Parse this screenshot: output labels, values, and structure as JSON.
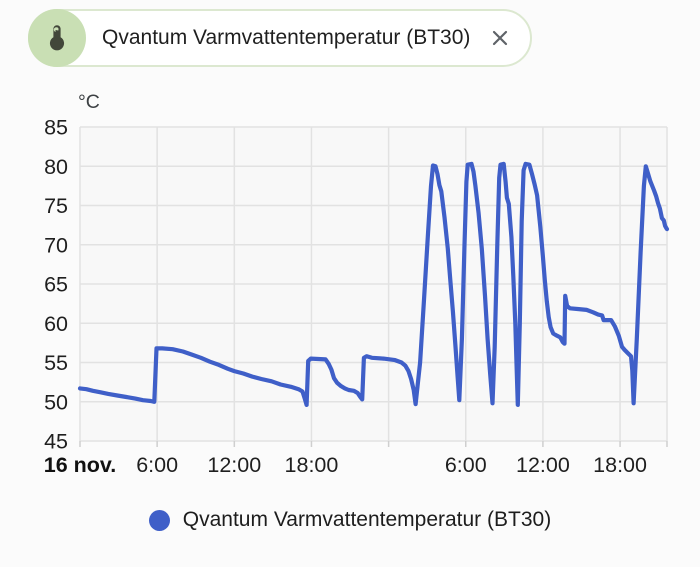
{
  "chip": {
    "label": "Qvantum Varmvattentemperatur (BT30)",
    "icon": "thermometer-icon",
    "close_icon": "close-icon"
  },
  "legend": {
    "label": "Qvantum Varmvattentemperatur (BT30)"
  },
  "colors": {
    "line": "#3f5fc8",
    "legend_marker": "#3f5fc8",
    "grid": "#e2e2e2",
    "tick": "#cfcfcf",
    "axis_text": "#1f1f1f",
    "unit_text": "#3c4043",
    "plot_bg": "#f8f8f8",
    "page_bg": "#fbfbfb",
    "chip_border": "#dce8d0",
    "chip_circle_bg": "#c9dfb4",
    "thermo_icon": "#42473a",
    "close_icon": "#5f6368"
  },
  "chart_data": {
    "type": "line",
    "title": "",
    "unit_label": "°C",
    "legend_position": "bottom",
    "grid": true,
    "x_axis": {
      "range_hours": [
        0,
        45.65
      ],
      "start_label": "16 nov.",
      "tick_labels": [
        {
          "hour": 0,
          "label": "16 nov.",
          "bold": true
        },
        {
          "hour": 6,
          "label": "6:00"
        },
        {
          "hour": 12,
          "label": "12:00"
        },
        {
          "hour": 18,
          "label": "18:00"
        },
        {
          "hour": 24,
          "label": ""
        },
        {
          "hour": 30,
          "label": "6:00"
        },
        {
          "hour": 36,
          "label": "12:00"
        },
        {
          "hour": 42,
          "label": "18:00"
        }
      ]
    },
    "y_axis": {
      "min": 45,
      "max": 85,
      "tick_interval": 5
    },
    "series": [
      {
        "name": "Qvantum Varmvattentemperatur (BT30)",
        "color": "#3f5fc8",
        "points": [
          [
            0.0,
            51.7
          ],
          [
            0.5,
            51.6
          ],
          [
            1.0,
            51.4
          ],
          [
            1.6,
            51.2
          ],
          [
            2.2,
            51.0
          ],
          [
            2.9,
            50.8
          ],
          [
            3.6,
            50.6
          ],
          [
            4.3,
            50.4
          ],
          [
            4.9,
            50.2
          ],
          [
            5.5,
            50.1
          ],
          [
            5.78,
            50.0
          ],
          [
            5.95,
            56.8
          ],
          [
            6.4,
            56.8
          ],
          [
            7.2,
            56.7
          ],
          [
            8.0,
            56.4
          ],
          [
            8.7,
            56.0
          ],
          [
            9.4,
            55.6
          ],
          [
            10.1,
            55.1
          ],
          [
            10.8,
            54.7
          ],
          [
            11.5,
            54.2
          ],
          [
            12.0,
            53.9
          ],
          [
            12.7,
            53.6
          ],
          [
            13.4,
            53.2
          ],
          [
            14.1,
            52.9
          ],
          [
            14.9,
            52.6
          ],
          [
            15.6,
            52.2
          ],
          [
            16.4,
            51.9
          ],
          [
            17.0,
            51.6
          ],
          [
            17.3,
            51.3
          ],
          [
            17.5,
            50.3
          ],
          [
            17.62,
            49.6
          ],
          [
            17.75,
            55.2
          ],
          [
            17.95,
            55.5
          ],
          [
            19.1,
            55.4
          ],
          [
            19.35,
            54.8
          ],
          [
            19.55,
            54.1
          ],
          [
            19.75,
            53.0
          ],
          [
            20.0,
            52.4
          ],
          [
            20.3,
            52.0
          ],
          [
            20.6,
            51.7
          ],
          [
            20.9,
            51.5
          ],
          [
            21.3,
            51.4
          ],
          [
            21.6,
            51.1
          ],
          [
            21.8,
            50.6
          ],
          [
            21.95,
            50.3
          ],
          [
            22.08,
            55.6
          ],
          [
            22.3,
            55.8
          ],
          [
            22.7,
            55.6
          ],
          [
            23.6,
            55.5
          ],
          [
            24.5,
            55.3
          ],
          [
            25.0,
            55.0
          ],
          [
            25.3,
            54.6
          ],
          [
            25.55,
            53.9
          ],
          [
            25.75,
            52.9
          ],
          [
            25.95,
            51.5
          ],
          [
            26.1,
            49.7
          ],
          [
            26.45,
            55.0
          ],
          [
            26.75,
            63.0
          ],
          [
            27.05,
            71.0
          ],
          [
            27.3,
            77.5
          ],
          [
            27.45,
            80.1
          ],
          [
            27.65,
            80.0
          ],
          [
            27.8,
            79.0
          ],
          [
            27.95,
            77.6
          ],
          [
            28.1,
            76.8
          ],
          [
            28.35,
            73.5
          ],
          [
            28.6,
            69.5
          ],
          [
            28.8,
            65.5
          ],
          [
            29.0,
            61.5
          ],
          [
            29.2,
            57.0
          ],
          [
            29.4,
            52.5
          ],
          [
            29.5,
            50.2
          ],
          [
            29.7,
            58.0
          ],
          [
            29.9,
            70.0
          ],
          [
            30.05,
            78.0
          ],
          [
            30.15,
            80.2
          ],
          [
            30.45,
            80.3
          ],
          [
            30.6,
            79.3
          ],
          [
            30.75,
            77.5
          ],
          [
            31.0,
            74.0
          ],
          [
            31.25,
            69.5
          ],
          [
            31.5,
            63.5
          ],
          [
            31.7,
            58.0
          ],
          [
            31.9,
            53.5
          ],
          [
            32.08,
            49.8
          ],
          [
            32.25,
            57.0
          ],
          [
            32.45,
            70.0
          ],
          [
            32.6,
            78.5
          ],
          [
            32.7,
            80.2
          ],
          [
            32.95,
            80.3
          ],
          [
            33.1,
            78.0
          ],
          [
            33.2,
            76.0
          ],
          [
            33.35,
            75.2
          ],
          [
            33.55,
            71.0
          ],
          [
            33.7,
            66.0
          ],
          [
            33.85,
            60.0
          ],
          [
            33.95,
            54.5
          ],
          [
            34.05,
            49.6
          ],
          [
            34.2,
            60.0
          ],
          [
            34.35,
            73.0
          ],
          [
            34.5,
            79.5
          ],
          [
            34.65,
            80.3
          ],
          [
            34.95,
            80.2
          ],
          [
            35.15,
            79.0
          ],
          [
            35.35,
            77.7
          ],
          [
            35.55,
            76.3
          ],
          [
            35.8,
            72.3
          ],
          [
            36.0,
            68.5
          ],
          [
            36.15,
            65.5
          ],
          [
            36.3,
            62.8
          ],
          [
            36.45,
            60.8
          ],
          [
            36.6,
            59.5
          ],
          [
            36.8,
            58.7
          ],
          [
            37.1,
            58.4
          ],
          [
            37.35,
            58.2
          ],
          [
            37.55,
            57.6
          ],
          [
            37.68,
            57.4
          ],
          [
            37.73,
            63.5
          ],
          [
            37.88,
            62.2
          ],
          [
            38.1,
            61.9
          ],
          [
            38.8,
            61.8
          ],
          [
            39.4,
            61.7
          ],
          [
            39.9,
            61.4
          ],
          [
            40.3,
            61.1
          ],
          [
            40.6,
            61.0
          ],
          [
            40.72,
            60.4
          ],
          [
            41.3,
            60.4
          ],
          [
            41.6,
            59.6
          ],
          [
            41.9,
            58.4
          ],
          [
            42.15,
            57.0
          ],
          [
            42.35,
            56.6
          ],
          [
            42.6,
            56.2
          ],
          [
            42.85,
            55.8
          ],
          [
            42.95,
            54.0
          ],
          [
            43.05,
            49.8
          ],
          [
            43.3,
            58.0
          ],
          [
            43.6,
            69.0
          ],
          [
            43.85,
            77.5
          ],
          [
            44.0,
            80.0
          ],
          [
            44.15,
            79.2
          ],
          [
            44.35,
            78.1
          ],
          [
            44.5,
            77.5
          ],
          [
            44.65,
            76.9
          ],
          [
            44.8,
            76.2
          ],
          [
            44.95,
            75.3
          ],
          [
            45.1,
            74.6
          ],
          [
            45.25,
            73.4
          ],
          [
            45.4,
            73.1
          ],
          [
            45.5,
            72.4
          ],
          [
            45.6,
            72.1
          ],
          [
            45.65,
            72.0
          ]
        ]
      }
    ]
  }
}
